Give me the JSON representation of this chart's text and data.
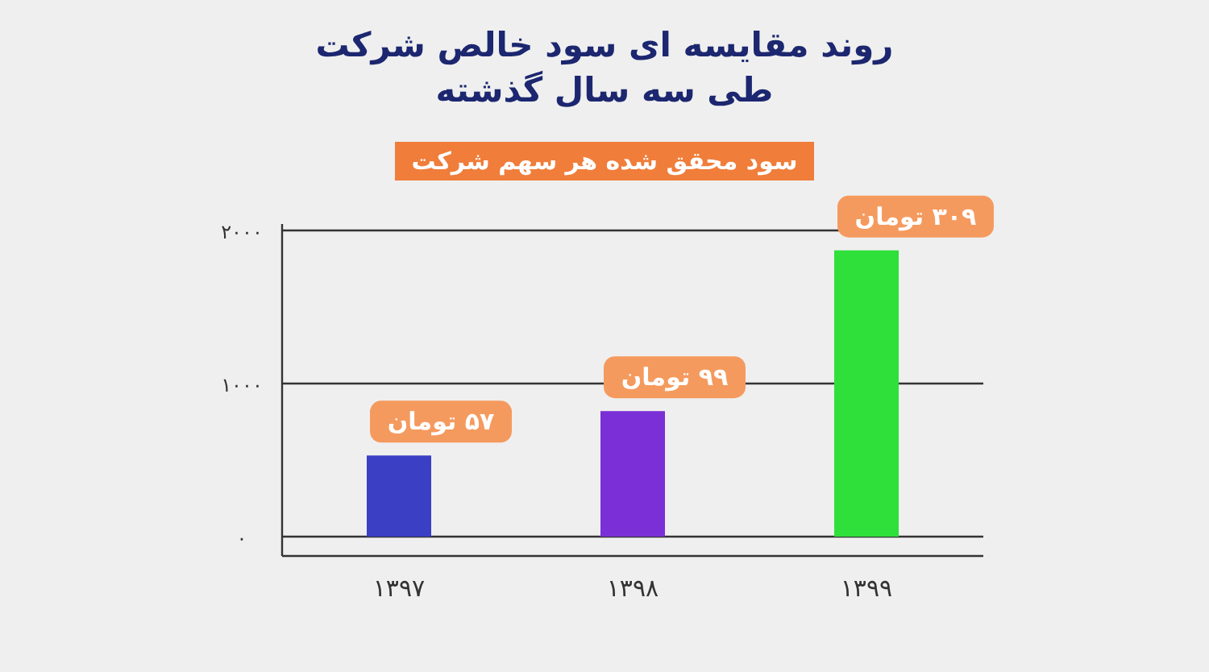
{
  "chart_data": {
    "type": "bar",
    "title": "روند مقایسه ای سود خالص شرکت طی سه سال گذشته",
    "subtitle": "سود محقق شده هر سهم شرکت",
    "categories": [
      "۱۳۹۷",
      "۱۳۹۸",
      "۱۳۹۹"
    ],
    "values": [
      530,
      820,
      1870
    ],
    "colors": [
      "#3a3fc4",
      "#7b2fd6",
      "#2fe03a"
    ],
    "annotations": [
      {
        "text": "۵۷ تومان",
        "x": "۱۳۹۷",
        "y": 530
      },
      {
        "text": "۹۹ تومان",
        "x": "۱۳۹۸",
        "y": 820
      },
      {
        "text": "۳۰۹ تومان",
        "x": "۱۳۹۹",
        "y": 1870
      }
    ],
    "ylim": [
      0,
      2000
    ],
    "yticks": [
      {
        "value": 0,
        "label": "۰"
      },
      {
        "value": 1000,
        "label": "۱۰۰۰"
      },
      {
        "value": 2000,
        "label": "۲۰۰۰"
      }
    ],
    "grid": "y"
  }
}
